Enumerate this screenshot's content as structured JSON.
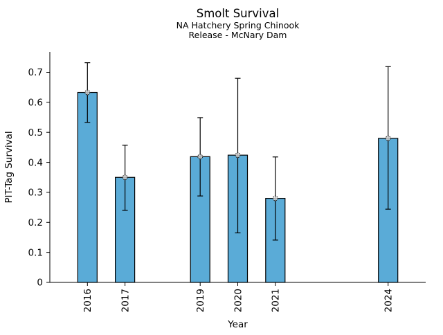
{
  "figure": {
    "background": "#ffffff"
  },
  "chart_data": {
    "type": "bar",
    "title": "Smolt Survival",
    "subtitle_lines": [
      "NA Hatchery Spring Chinook",
      "Release - McNary Dam"
    ],
    "xlabel": "Year",
    "ylabel": "PIT-Tag Survival",
    "categories": [
      "2016",
      "2017",
      "2019",
      "2020",
      "2021",
      "2024"
    ],
    "x_years": [
      2016,
      2017,
      2019,
      2020,
      2021,
      2024
    ],
    "values": [
      0.633,
      0.35,
      0.419,
      0.424,
      0.28,
      0.48
    ],
    "error_low": [
      0.533,
      0.24,
      0.288,
      0.165,
      0.141,
      0.244
    ],
    "error_high": [
      0.732,
      0.457,
      0.549,
      0.68,
      0.418,
      0.719
    ],
    "xlim": [
      2015,
      2025
    ],
    "ylim": [
      0,
      0.768
    ],
    "yticks": [
      0,
      0.1,
      0.2,
      0.3,
      0.4,
      0.5,
      0.6,
      0.7
    ],
    "ytick_labels": [
      "0",
      "0.1",
      "0.2",
      "0.3",
      "0.4",
      "0.5",
      "0.6",
      "0.7"
    ],
    "bar_color": "#5aabd7",
    "bar_edge_color": "#000000",
    "error_color": "#000000",
    "marker": "circle-crosshair",
    "marker_fill": "#e0e0e0",
    "grid": false,
    "legend": false
  }
}
